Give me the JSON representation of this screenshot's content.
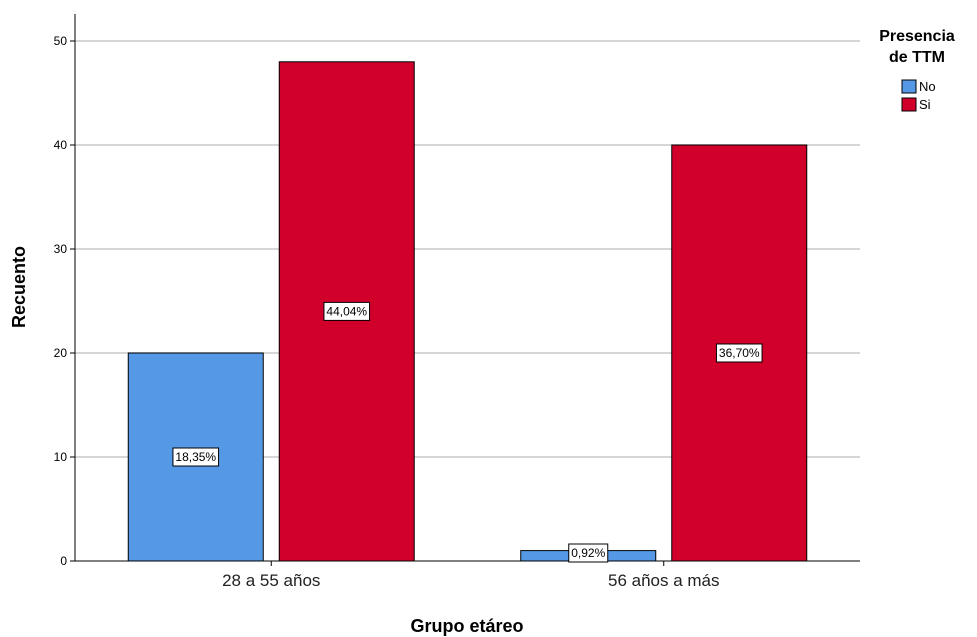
{
  "chart_data": {
    "type": "bar",
    "categories": [
      "28 a 55 años",
      "56 años a más"
    ],
    "series": [
      {
        "name": "No",
        "color": "#5599e6",
        "values": [
          20,
          1
        ],
        "labels": [
          "18,35%",
          "0,92%"
        ]
      },
      {
        "name": "Si",
        "color": "#d1002b",
        "values": [
          48,
          40
        ],
        "labels": [
          "44,04%",
          "36,70%"
        ]
      }
    ],
    "xlabel": "Grupo etáreo",
    "ylabel": "Recuento",
    "ylim": [
      0,
      50
    ],
    "yticks": [
      0,
      10,
      20,
      30,
      40,
      50
    ],
    "grid": true,
    "legend": {
      "title_lines": [
        "Presencia",
        "de TTM"
      ],
      "placement": "top-right"
    }
  }
}
